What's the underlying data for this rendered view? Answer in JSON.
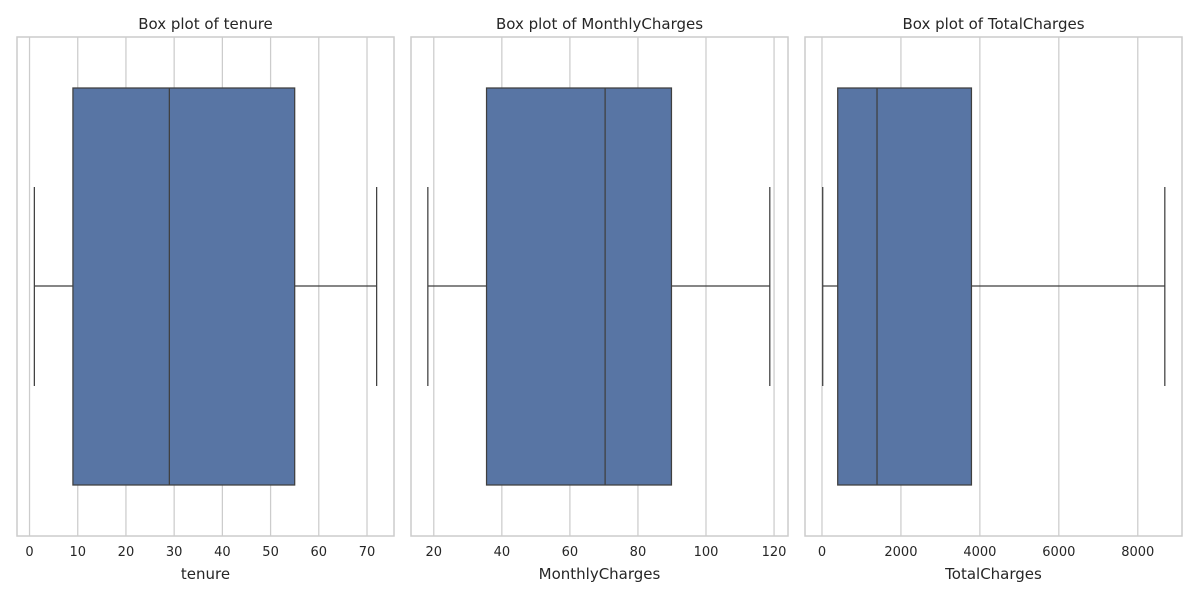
{
  "chart_data": [
    {
      "type": "boxplot",
      "title": "Box plot of tenure",
      "xlabel": "tenure",
      "xlim": [
        -2.6,
        75.6
      ],
      "ticks": [
        0,
        10,
        20,
        30,
        40,
        50,
        60,
        70
      ],
      "tick_labels": [
        "0",
        "10",
        "20",
        "30",
        "40",
        "50",
        "60",
        "70"
      ],
      "stats": {
        "whisker_low": 1,
        "q1": 9,
        "median": 29,
        "q3": 55,
        "whisker_high": 72
      },
      "grid": true
    },
    {
      "type": "boxplot",
      "title": "Box plot of MonthlyCharges",
      "xlabel": "MonthlyCharges",
      "xlim": [
        13.3,
        124.1
      ],
      "ticks": [
        20,
        40,
        60,
        80,
        100,
        120
      ],
      "tick_labels": [
        "20",
        "40",
        "60",
        "80",
        "100",
        "120"
      ],
      "stats": {
        "whisker_low": 18.25,
        "q1": 35.5,
        "median": 70.35,
        "q3": 89.85,
        "whisker_high": 118.75
      },
      "grid": true
    },
    {
      "type": "boxplot",
      "title": "Box plot of TotalCharges",
      "xlabel": "TotalCharges",
      "xlim": [
        -430,
        9120
      ],
      "ticks": [
        0,
        2000,
        4000,
        6000,
        8000
      ],
      "tick_labels": [
        "0",
        "2000",
        "4000",
        "6000",
        "8000"
      ],
      "stats": {
        "whisker_low": 18.8,
        "q1": 398.6,
        "median": 1394.55,
        "q3": 3786.6,
        "whisker_high": 8684.8
      },
      "grid": true
    }
  ],
  "colors": {
    "box_fill": "#5875a4",
    "box_edge": "#3f3f3f",
    "grid": "#cccccc",
    "spine": "#cccccc",
    "text": "#262626"
  }
}
